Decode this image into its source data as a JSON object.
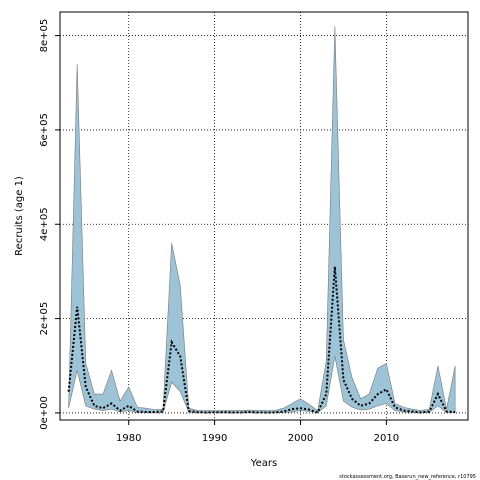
{
  "chart_data": {
    "type": "area",
    "xlabel": "Years",
    "ylabel": "Recruits (age 1)",
    "xlim": [
      1972,
      2019.5
    ],
    "ylim": [
      -15000,
      850000
    ],
    "x_ticks": [
      1980,
      1990,
      2000,
      2010
    ],
    "y_ticks": [
      0,
      200000,
      400000,
      600000,
      800000
    ],
    "y_tick_labels": [
      "0e+00",
      "2e+05",
      "4e+05",
      "6e+05",
      "8e+05"
    ],
    "grid": "dotted",
    "colors": {
      "band": "#9dc3d6",
      "band_edge": "#777777",
      "median": "#000000"
    },
    "x": [
      1973,
      1974,
      1975,
      1976,
      1977,
      1978,
      1979,
      1980,
      1981,
      1982,
      1983,
      1984,
      1985,
      1986,
      1987,
      1988,
      1989,
      1990,
      1991,
      1992,
      1993,
      1994,
      1995,
      1996,
      1997,
      1998,
      1999,
      2000,
      2001,
      2002,
      2003,
      2004,
      2005,
      2006,
      2007,
      2008,
      2009,
      2010,
      2011,
      2012,
      2013,
      2014,
      2015,
      2016,
      2017,
      2018
    ],
    "series": [
      {
        "role": "upper",
        "values": [
          10000,
          740000,
          105000,
          40000,
          40000,
          90000,
          25000,
          55000,
          12000,
          10000,
          7000,
          8000,
          360000,
          270000,
          10000,
          5000,
          5000,
          5000,
          5000,
          5000,
          5000,
          6000,
          5000,
          5000,
          5000,
          10000,
          20000,
          30000,
          18000,
          5000,
          110000,
          820000,
          155000,
          75000,
          30000,
          40000,
          95000,
          105000,
          20000,
          12000,
          8000,
          5000,
          8000,
          100000,
          8000,
          100000
        ]
      },
      {
        "role": "median",
        "values": [
          45000,
          225000,
          55000,
          15000,
          10000,
          20000,
          5000,
          15000,
          3000,
          2000,
          2000,
          3000,
          150000,
          120000,
          4000,
          1500,
          1000,
          1500,
          1500,
          1000,
          1000,
          2000,
          1000,
          1000,
          1000,
          3000,
          8000,
          10000,
          7000,
          1000,
          40000,
          310000,
          70000,
          30000,
          15000,
          20000,
          40000,
          50000,
          12000,
          5000,
          3000,
          1000,
          3000,
          40000,
          3000,
          2000
        ]
      },
      {
        "role": "lower",
        "values": [
          10000,
          90000,
          15000,
          8000,
          5000,
          8000,
          2000,
          5000,
          1000,
          500,
          500,
          500,
          65000,
          45000,
          1000,
          500,
          500,
          500,
          500,
          500,
          500,
          1000,
          500,
          500,
          500,
          1000,
          2000,
          5000,
          3000,
          500,
          15000,
          120000,
          25000,
          12000,
          6000,
          8000,
          15000,
          20000,
          5000,
          2000,
          1000,
          500,
          1000,
          15000,
          1000,
          1000
        ]
      }
    ]
  },
  "footnote": "stockassessment.org, Baserun_new_reference, r10795"
}
